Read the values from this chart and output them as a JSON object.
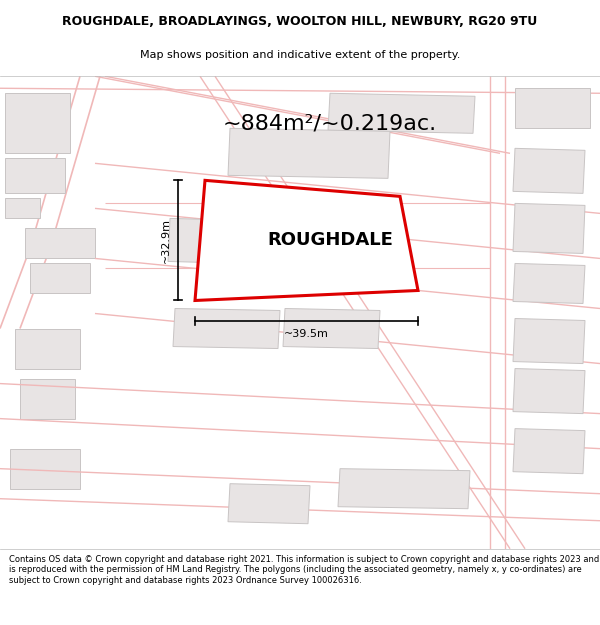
{
  "title_line1": "ROUGHDALE, BROADLAYINGS, WOOLTON HILL, NEWBURY, RG20 9TU",
  "title_line2": "Map shows position and indicative extent of the property.",
  "area_label": "~884m²/~0.219ac.",
  "property_name": "ROUGHDALE",
  "dim_width": "~39.5m",
  "dim_height": "~32.9m",
  "footer_text": "Contains OS data © Crown copyright and database right 2021. This information is subject to Crown copyright and database rights 2023 and is reproduced with the permission of HM Land Registry. The polygons (including the associated geometry, namely x, y co-ordinates) are subject to Crown copyright and database rights 2023 Ordnance Survey 100026316.",
  "bg_color": "#ffffff",
  "map_bg": "#f9f6f6",
  "road_color": "#f0b8b8",
  "road_color2": "#d0c8c8",
  "highlight_color": "#dd0000",
  "building_fill": "#e8e4e4",
  "building_edge": "#c8c4c4"
}
